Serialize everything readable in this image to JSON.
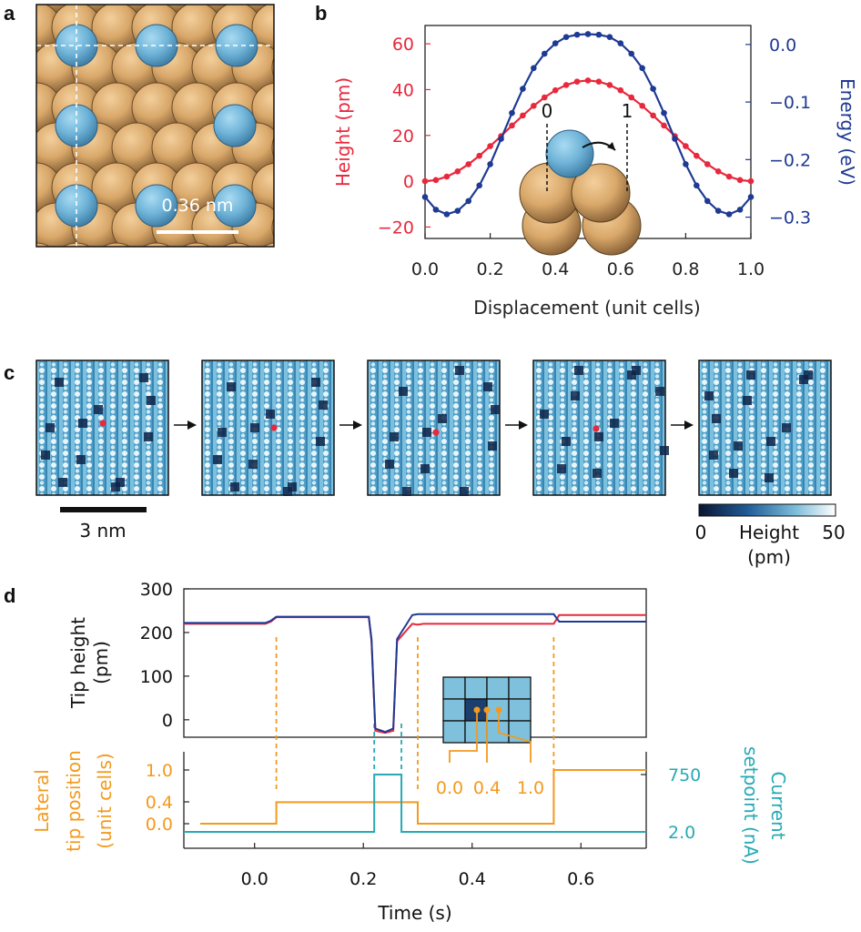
{
  "panel_labels": {
    "a": "a",
    "b": "b",
    "c": "c",
    "d": "d"
  },
  "colors": {
    "red": "#e8283c",
    "blue": "#1f3a93",
    "orange": "#f39a1e",
    "teal": "#27a9b5",
    "atom_tan": "#d9a86a",
    "adatom_blue": "#6fb3d8"
  },
  "panel_a": {
    "scale_bar_label": "0.36 nm"
  },
  "panel_b": {
    "inset_labels": {
      "start": "0",
      "end": "1"
    },
    "chart_data": {
      "type": "line",
      "title": "",
      "xlabel": "Displacement (unit cells)",
      "x_ticks": [
        "0.0",
        "0.2",
        "0.4",
        "0.6",
        "0.8",
        "1.0"
      ],
      "xlim": [
        0,
        1
      ],
      "left_axis": {
        "label": "Height (pm)",
        "ticks": [
          "60",
          "40",
          "20",
          "0",
          "−20"
        ],
        "ylim": [
          -25,
          68
        ]
      },
      "right_axis": {
        "label": "Energy (eV)",
        "ticks": [
          "0.0",
          "−0.1",
          "−0.2",
          "−0.3"
        ],
        "ylim": [
          -0.337,
          0.033
        ]
      },
      "series": [
        {
          "axis": "left",
          "color": "#e8283c",
          "x": [
            0,
            0.0333,
            0.0667,
            0.1,
            0.1333,
            0.1667,
            0.2,
            0.2333,
            0.2667,
            0.3,
            0.3333,
            0.3667,
            0.4,
            0.4333,
            0.4667,
            0.5,
            0.5333,
            0.5667,
            0.6,
            0.6333,
            0.6667,
            0.7,
            0.7333,
            0.7667,
            0.8,
            0.8333,
            0.8667,
            0.9,
            0.9333,
            0.9667,
            1.0
          ],
          "y": [
            0,
            0.5,
            2,
            4.3,
            7.4,
            11.1,
            15.3,
            19.7,
            24.3,
            28.7,
            32.9,
            36.6,
            39.7,
            42.0,
            43.5,
            44,
            43.5,
            42.0,
            39.7,
            36.6,
            32.9,
            28.7,
            24.3,
            19.7,
            15.3,
            11.1,
            7.4,
            4.3,
            2,
            0.5,
            0
          ]
        },
        {
          "axis": "right",
          "color": "#1f3a93",
          "x": [
            0,
            0.0333,
            0.0667,
            0.1,
            0.1333,
            0.1667,
            0.2,
            0.2333,
            0.2667,
            0.3,
            0.3333,
            0.3667,
            0.4,
            0.4333,
            0.4667,
            0.5,
            0.5333,
            0.5667,
            0.6,
            0.6333,
            0.6667,
            0.7,
            0.7333,
            0.7667,
            0.8,
            0.8333,
            0.8667,
            0.9,
            0.9333,
            0.9667,
            1.0
          ],
          "y": [
            -0.265,
            -0.287,
            -0.295,
            -0.289,
            -0.272,
            -0.245,
            -0.208,
            -0.164,
            -0.119,
            -0.077,
            -0.041,
            -0.016,
            0.002,
            0.013,
            0.017,
            0.018,
            0.017,
            0.013,
            0.002,
            -0.016,
            -0.041,
            -0.077,
            -0.119,
            -0.164,
            -0.208,
            -0.245,
            -0.272,
            -0.289,
            -0.295,
            -0.287,
            -0.265
          ]
        }
      ]
    }
  },
  "panel_c": {
    "scale_bar_label": "3 nm",
    "colorbar": {
      "min": "0",
      "max": "50",
      "title": "Height",
      "unit": "(pm)"
    }
  },
  "panel_d": {
    "inset_positions": [
      "0.0",
      "0.4",
      "1.0"
    ],
    "chart_data": {
      "type": "line",
      "title": "",
      "xlabel": "Time (s)",
      "x_ticks": [
        "0.0",
        "0.2",
        "0.4",
        "0.6"
      ],
      "xlim": [
        -0.13,
        0.72
      ],
      "top": {
        "ylabel_lines": [
          "Tip height",
          "(pm)"
        ],
        "y_ticks": [
          "300",
          "200",
          "100",
          "0"
        ],
        "ylim": [
          -40,
          300
        ],
        "series": [
          {
            "color": "#e8283c",
            "x": [
              -0.13,
              0.02,
              0.03,
              0.04,
              0.21,
              0.215,
              0.222,
              0.24,
              0.255,
              0.262,
              0.29,
              0.3,
              0.31,
              0.55,
              0.56,
              0.72
            ],
            "y": [
              220,
              220,
              225,
              235,
              235,
              180,
              -25,
              -30,
              -25,
              180,
              220,
              218,
              220,
              220,
              240,
              240
            ]
          },
          {
            "color": "#1f3a93",
            "x": [
              -0.13,
              0.02,
              0.03,
              0.04,
              0.21,
              0.215,
              0.222,
              0.24,
              0.255,
              0.262,
              0.29,
              0.3,
              0.31,
              0.55,
              0.56,
              0.72
            ],
            "y": [
              222,
              222,
              227,
              236,
              236,
              185,
              -20,
              -28,
              -20,
              185,
              240,
              242,
              242,
              242,
              225,
              225
            ]
          }
        ]
      },
      "bottom": {
        "left_label_lines": [
          "Lateral",
          "tip position",
          "(unit cells)"
        ],
        "left_ticks": [
          "1.0",
          "0.4",
          "0.0"
        ],
        "right_label_lines": [
          "Current",
          "setpoint (nA)"
        ],
        "right_ticks": [
          "750",
          "2.0"
        ],
        "series": [
          {
            "name": "Lateral tip position",
            "color": "#f39a1e",
            "x": [
              -0.1,
              0.04,
              0.04,
              0.3,
              0.3,
              0.55,
              0.55,
              0.72
            ],
            "y": [
              0.0,
              0.0,
              0.4,
              0.4,
              0.0,
              0.0,
              1.0,
              1.0
            ]
          },
          {
            "name": "Current setpoint",
            "color": "#27a9b5",
            "x": [
              -0.13,
              0.22,
              0.22,
              0.27,
              0.27,
              0.72
            ],
            "y": [
              "2.0",
              "2.0",
              "750",
              "750",
              "2.0",
              "2.0"
            ]
          }
        ]
      }
    }
  }
}
